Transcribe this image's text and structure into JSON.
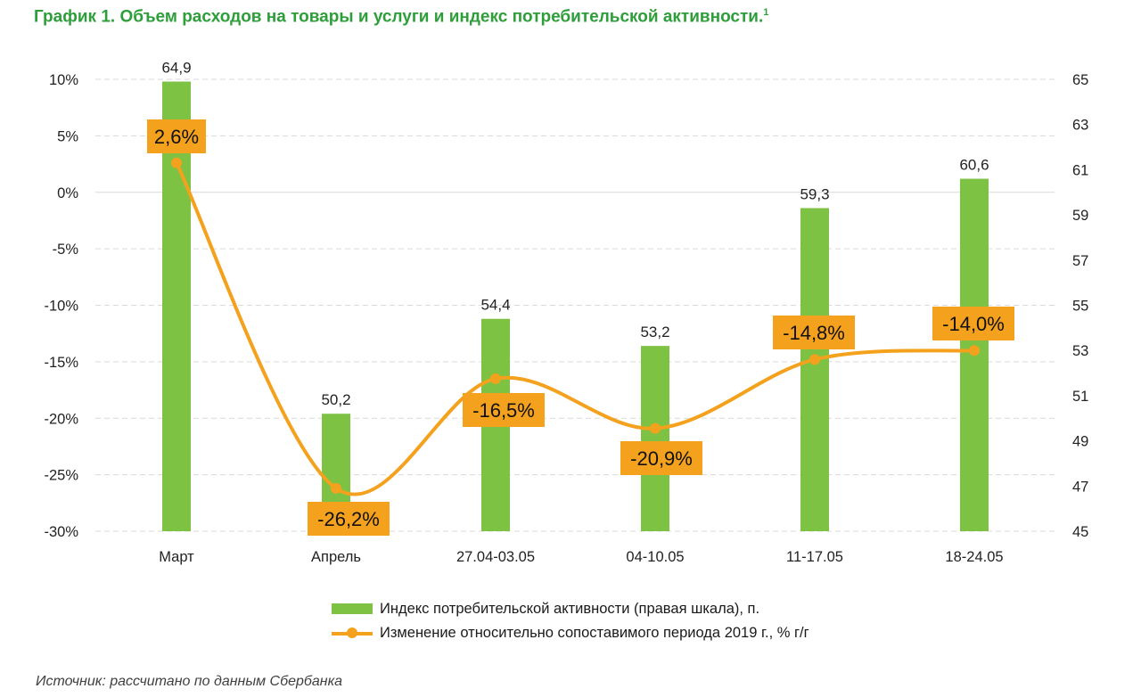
{
  "title": "График 1. Объем расходов на товары и услуги и индекс потребительской активности.",
  "title_footnote": "1",
  "source": "Источник: рассчитано по данным Сбербанка",
  "colors": {
    "bar": "#7dc242",
    "line": "#f4a11e",
    "title": "#2e9e3a",
    "grid": "#d9d9d9"
  },
  "chart_data": {
    "type": "bar+line",
    "categories": [
      "Март",
      "Апрель",
      "27.04-03.05",
      "04-10.05",
      "11-17.05",
      "18-24.05"
    ],
    "series": [
      {
        "name": "Индекс потребительской активности (правая шкала), п.",
        "type": "bar",
        "axis": "right",
        "values": [
          64.9,
          50.2,
          54.4,
          53.2,
          59.3,
          60.6
        ],
        "labels": [
          "64,9",
          "50,2",
          "54,4",
          "53,2",
          "59,3",
          "60,6"
        ]
      },
      {
        "name": "Изменение относительно сопоставимого периода 2019 г., % г/г",
        "type": "line",
        "axis": "left",
        "values": [
          2.6,
          -26.2,
          -16.5,
          -20.9,
          -14.8,
          -14.0
        ],
        "labels": [
          "2,6%",
          "-26,2%",
          "-16,5%",
          "-20,9%",
          "-14,8%",
          "-14,0%"
        ]
      }
    ],
    "y_left": {
      "ticks": [
        10,
        5,
        0,
        -5,
        -10,
        -15,
        -20,
        -25,
        -30
      ],
      "tick_labels": [
        "10%",
        "5%",
        "0%",
        "-5%",
        "-10%",
        "-15%",
        "-20%",
        "-25%",
        "-30%"
      ],
      "ylim": [
        -30,
        10
      ]
    },
    "y_right": {
      "ticks": [
        65,
        63,
        61,
        59,
        57,
        55,
        53,
        51,
        49,
        47,
        45
      ],
      "tick_labels": [
        "65",
        "63",
        "61",
        "59",
        "57",
        "55",
        "53",
        "51",
        "49",
        "47",
        "45"
      ],
      "ylim": [
        45,
        65
      ]
    },
    "grid": true,
    "legend_position": "bottom"
  }
}
